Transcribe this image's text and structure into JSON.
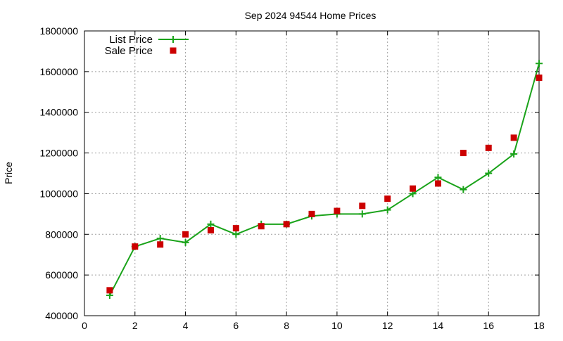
{
  "chart_data": {
    "type": "line",
    "title": "Sep 2024 94544 Home Prices",
    "xlabel": "",
    "ylabel": "Price",
    "xlim": [
      0,
      18
    ],
    "ylim": [
      400000,
      1800000
    ],
    "x_ticks": [
      0,
      2,
      4,
      6,
      8,
      10,
      12,
      14,
      16,
      18
    ],
    "y_ticks": [
      400000,
      600000,
      800000,
      1000000,
      1200000,
      1400000,
      1600000,
      1800000
    ],
    "grid": true,
    "legend_position": "top-left",
    "series": [
      {
        "name": "List Price",
        "style": "line+plus",
        "color": "#1aa31a",
        "x": [
          1,
          2,
          3,
          4,
          5,
          6,
          7,
          8,
          9,
          10,
          11,
          12,
          13,
          14,
          15,
          16,
          17,
          18
        ],
        "values": [
          500000,
          740000,
          780000,
          760000,
          850000,
          800000,
          850000,
          850000,
          890000,
          900000,
          900000,
          920000,
          1000000,
          1080000,
          1020000,
          1100000,
          1195000,
          1640000
        ]
      },
      {
        "name": "Sale Price",
        "style": "square",
        "color": "#cc0000",
        "x": [
          1,
          2,
          3,
          4,
          5,
          6,
          7,
          8,
          9,
          10,
          11,
          12,
          13,
          14,
          15,
          16,
          17,
          18
        ],
        "values": [
          525000,
          740000,
          750000,
          800000,
          820000,
          830000,
          840000,
          850000,
          900000,
          915000,
          940000,
          975000,
          1025000,
          1050000,
          1200000,
          1225000,
          1275000,
          1570000
        ]
      }
    ]
  }
}
